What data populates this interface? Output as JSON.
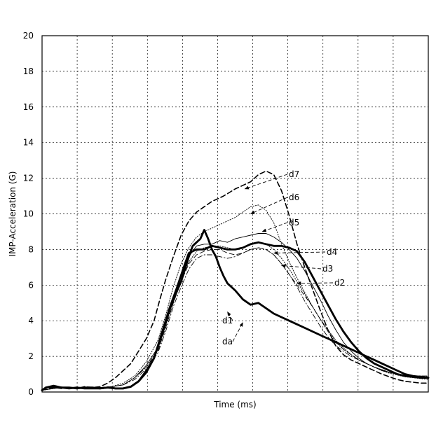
{
  "chart_data": {
    "type": "line",
    "xlabel": "Time (ms)",
    "ylabel": "IMP-Acceleration (G)",
    "xlim": [
      0,
      100
    ],
    "ylim": [
      0,
      20
    ],
    "yticks": [
      "0",
      "2",
      "4",
      "6",
      "8",
      "10",
      "12",
      "14",
      "16",
      "18",
      "20"
    ],
    "x_grid_divisions": 11,
    "grid": true,
    "series": [
      {
        "name": "d7",
        "style": "dashed",
        "weight": "medium",
        "x": [
          0,
          1,
          3,
          5,
          7,
          9,
          11,
          13,
          15,
          17,
          19,
          21,
          23,
          25,
          27,
          29,
          30.5,
          32,
          34,
          36,
          38,
          40,
          42,
          44,
          46,
          47,
          48.5,
          50,
          52,
          54,
          56,
          58,
          60,
          62,
          64,
          66,
          68,
          70,
          72,
          74,
          76,
          78,
          80,
          82,
          84,
          86,
          88,
          90,
          92,
          94,
          96,
          98,
          100
        ],
        "y": [
          0.1,
          0.2,
          0.25,
          0.2,
          0.25,
          0.2,
          0.3,
          0.25,
          0.3,
          0.5,
          0.8,
          1.2,
          1.6,
          2.3,
          3.0,
          4.0,
          5.2,
          6.3,
          7.6,
          8.8,
          9.6,
          10.1,
          10.4,
          10.7,
          10.9,
          11.0,
          11.2,
          11.4,
          11.6,
          11.8,
          12.2,
          12.4,
          12.2,
          11.3,
          9.9,
          8.3,
          7.0,
          5.8,
          4.6,
          3.5,
          2.6,
          2.1,
          1.8,
          1.6,
          1.4,
          1.2,
          1.0,
          0.85,
          0.7,
          0.6,
          0.55,
          0.5,
          0.5
        ]
      },
      {
        "name": "d6",
        "style": "dotted",
        "weight": "thin",
        "x": [
          0,
          3,
          6,
          9,
          12,
          15,
          18,
          21,
          24,
          27,
          30,
          32,
          34,
          36,
          38,
          40,
          42,
          44,
          46,
          48,
          50,
          52,
          54,
          56,
          58,
          60,
          62,
          64,
          66,
          68,
          70,
          72,
          74,
          76,
          78,
          80,
          82,
          84,
          86,
          88,
          90,
          92,
          94,
          96,
          98,
          100
        ],
        "y": [
          0.1,
          0.2,
          0.25,
          0.2,
          0.25,
          0.25,
          0.3,
          0.5,
          0.9,
          1.7,
          2.9,
          4.3,
          5.9,
          7.2,
          8.1,
          8.7,
          9.0,
          9.2,
          9.4,
          9.6,
          9.8,
          10.1,
          10.4,
          10.5,
          10.2,
          9.5,
          8.3,
          7.3,
          6.4,
          5.6,
          4.8,
          4.1,
          3.5,
          2.9,
          2.5,
          2.1,
          1.8,
          1.6,
          1.4,
          1.2,
          1.05,
          0.95,
          0.85,
          0.8,
          0.75,
          0.7
        ]
      },
      {
        "name": "d5",
        "style": "solid",
        "weight": "thin",
        "x": [
          0,
          3,
          6,
          9,
          12,
          15,
          18,
          21,
          24,
          27,
          30,
          32,
          34,
          36,
          38,
          40,
          42,
          44,
          46,
          48,
          50,
          52,
          54,
          56,
          58,
          60,
          62,
          64,
          66,
          68,
          70,
          72,
          74,
          76,
          78,
          80,
          82,
          84,
          86,
          88,
          90,
          92,
          94,
          96,
          98,
          100
        ],
        "y": [
          0.1,
          0.2,
          0.25,
          0.2,
          0.25,
          0.25,
          0.3,
          0.4,
          0.8,
          1.5,
          2.5,
          3.9,
          5.3,
          6.6,
          7.6,
          8.2,
          8.3,
          8.3,
          8.5,
          8.4,
          8.6,
          8.7,
          8.8,
          8.9,
          8.9,
          8.7,
          8.4,
          8.0,
          7.5,
          6.8,
          6.0,
          5.2,
          4.3,
          3.5,
          2.8,
          2.3,
          1.9,
          1.6,
          1.4,
          1.2,
          1.1,
          1.0,
          0.95,
          0.9,
          0.85,
          0.8
        ]
      },
      {
        "name": "d4",
        "style": "dashed",
        "weight": "thin",
        "x": [
          0,
          3,
          6,
          9,
          12,
          15,
          18,
          21,
          24,
          27,
          30,
          32,
          34,
          36,
          38,
          40,
          42,
          44,
          46,
          48,
          50,
          52,
          54,
          56,
          58,
          60,
          62,
          64,
          66,
          68,
          70,
          72,
          74,
          76,
          78,
          80,
          82,
          84,
          86,
          88,
          90,
          92,
          94,
          96,
          98,
          100
        ],
        "y": [
          0.1,
          0.2,
          0.25,
          0.2,
          0.25,
          0.25,
          0.3,
          0.4,
          0.8,
          1.4,
          2.3,
          3.6,
          5.0,
          6.2,
          7.2,
          7.7,
          7.9,
          8.0,
          8.0,
          7.8,
          7.7,
          7.8,
          8.0,
          8.1,
          8.0,
          7.7,
          7.2,
          6.6,
          6.0,
          5.4,
          4.8,
          4.1,
          3.5,
          2.9,
          2.4,
          2.1,
          1.8,
          1.6,
          1.4,
          1.25,
          1.1,
          1.0,
          0.95,
          0.9,
          0.9,
          0.85
        ]
      },
      {
        "name": "d3",
        "style": "dotted",
        "weight": "thin",
        "x": [
          0,
          3,
          6,
          9,
          12,
          15,
          18,
          21,
          24,
          27,
          30,
          32,
          34,
          36,
          38,
          40,
          42,
          44,
          46,
          48,
          50,
          52,
          54,
          56,
          58,
          60,
          62,
          64,
          66,
          68,
          70,
          72,
          74,
          76,
          78,
          80,
          82,
          84,
          86,
          88,
          90,
          92,
          94,
          96,
          98,
          100
        ],
        "y": [
          0.1,
          0.2,
          0.25,
          0.2,
          0.25,
          0.25,
          0.3,
          0.4,
          0.8,
          1.4,
          2.4,
          3.7,
          5.1,
          6.3,
          7.3,
          7.9,
          8.1,
          8.2,
          8.2,
          8.1,
          8.0,
          8.1,
          8.3,
          8.4,
          8.3,
          8.0,
          7.5,
          6.9,
          6.2,
          5.5,
          4.8,
          4.1,
          3.4,
          2.8,
          2.4,
          2.1,
          1.8,
          1.6,
          1.4,
          1.25,
          1.1,
          1.0,
          0.95,
          0.9,
          0.85,
          0.8
        ]
      },
      {
        "name": "d2",
        "style": "dashdot",
        "weight": "thin",
        "x": [
          0,
          3,
          6,
          9,
          12,
          15,
          18,
          21,
          24,
          27,
          30,
          32,
          34,
          36,
          38,
          40,
          42,
          44,
          46,
          48,
          50,
          52,
          54,
          56,
          58,
          60,
          62,
          64,
          66,
          68,
          70,
          72,
          74,
          76,
          78,
          80,
          82,
          84,
          86,
          88,
          90,
          92,
          94,
          96,
          98,
          100
        ],
        "y": [
          0.1,
          0.2,
          0.25,
          0.2,
          0.25,
          0.25,
          0.3,
          0.4,
          0.7,
          1.3,
          2.2,
          3.4,
          4.8,
          5.9,
          6.9,
          7.5,
          7.7,
          7.7,
          7.6,
          7.5,
          7.6,
          7.8,
          8.0,
          8.1,
          8.0,
          7.7,
          7.2,
          6.6,
          5.9,
          5.1,
          4.4,
          3.7,
          3.1,
          2.6,
          2.3,
          2.0,
          1.8,
          1.6,
          1.4,
          1.25,
          1.1,
          1.0,
          0.95,
          0.9,
          0.9,
          0.9
        ]
      },
      {
        "name": "d1",
        "style": "solid",
        "weight": "bold",
        "x": [
          0,
          1,
          3,
          5,
          7,
          9,
          11,
          13,
          15,
          17,
          19,
          21,
          23,
          25,
          27,
          29,
          31,
          33,
          35,
          36,
          37,
          38,
          39,
          40,
          41,
          42,
          43,
          44,
          45,
          46,
          47,
          48,
          50,
          52,
          54,
          56,
          58,
          60,
          62,
          64,
          66,
          68,
          70,
          72,
          74,
          76,
          78,
          80,
          82,
          84,
          86,
          88,
          90,
          92,
          94,
          96,
          98,
          100
        ],
        "y": [
          0.1,
          0.25,
          0.3,
          0.25,
          0.2,
          0.25,
          0.2,
          0.2,
          0.2,
          0.25,
          0.2,
          0.2,
          0.3,
          0.6,
          1.2,
          1.9,
          3.2,
          4.6,
          5.7,
          6.2,
          6.9,
          7.6,
          8.2,
          8.4,
          8.6,
          9.1,
          8.6,
          8.0,
          7.6,
          7.0,
          6.5,
          6.1,
          5.7,
          5.2,
          4.9,
          5.0,
          4.7,
          4.4,
          4.2,
          4.0,
          3.8,
          3.6,
          3.4,
          3.2,
          3.0,
          2.8,
          2.6,
          2.4,
          2.2,
          2.0,
          1.8,
          1.6,
          1.4,
          1.2,
          1.0,
          0.9,
          0.85,
          0.8
        ]
      },
      {
        "name": "da",
        "style": "solid",
        "weight": "bold",
        "x": [
          0,
          1,
          3,
          5,
          7,
          9,
          11,
          13,
          15,
          17,
          19,
          21,
          23,
          25,
          27,
          29,
          31,
          33,
          35,
          37,
          38,
          40,
          42,
          44,
          46,
          48,
          50,
          52,
          54,
          56,
          58,
          60,
          62,
          64,
          66,
          68,
          70,
          72,
          74,
          76,
          78,
          80,
          82,
          84,
          86,
          88,
          90,
          92,
          94,
          96,
          98,
          100
        ],
        "y": [
          0.1,
          0.25,
          0.35,
          0.25,
          0.25,
          0.2,
          0.25,
          0.25,
          0.2,
          0.25,
          0.2,
          0.2,
          0.3,
          0.6,
          1.1,
          1.9,
          3.3,
          4.7,
          5.9,
          7.2,
          7.8,
          8.0,
          8.0,
          8.2,
          8.1,
          8.0,
          8.0,
          8.1,
          8.3,
          8.4,
          8.3,
          8.2,
          8.2,
          8.1,
          7.9,
          7.3,
          6.5,
          5.7,
          4.9,
          4.1,
          3.4,
          2.8,
          2.3,
          1.9,
          1.6,
          1.4,
          1.2,
          1.0,
          0.9,
          0.85,
          0.8,
          0.8
        ]
      }
    ],
    "annotations": [
      {
        "label": "d7",
        "point": [
          52.5,
          11.4
        ]
      },
      {
        "label": "d6",
        "point": [
          54,
          10
        ]
      },
      {
        "label": "d5",
        "point": [
          57,
          9
        ]
      },
      {
        "label": "d4",
        "point": [
          60,
          7.8
        ]
      },
      {
        "label": "d3",
        "point": [
          62,
          7.1
        ]
      },
      {
        "label": "d2",
        "point": [
          66,
          6.1
        ]
      },
      {
        "label": "d1",
        "point": [
          48,
          4.5
        ]
      },
      {
        "label": "da",
        "point": [
          52,
          3.9
        ]
      }
    ]
  }
}
